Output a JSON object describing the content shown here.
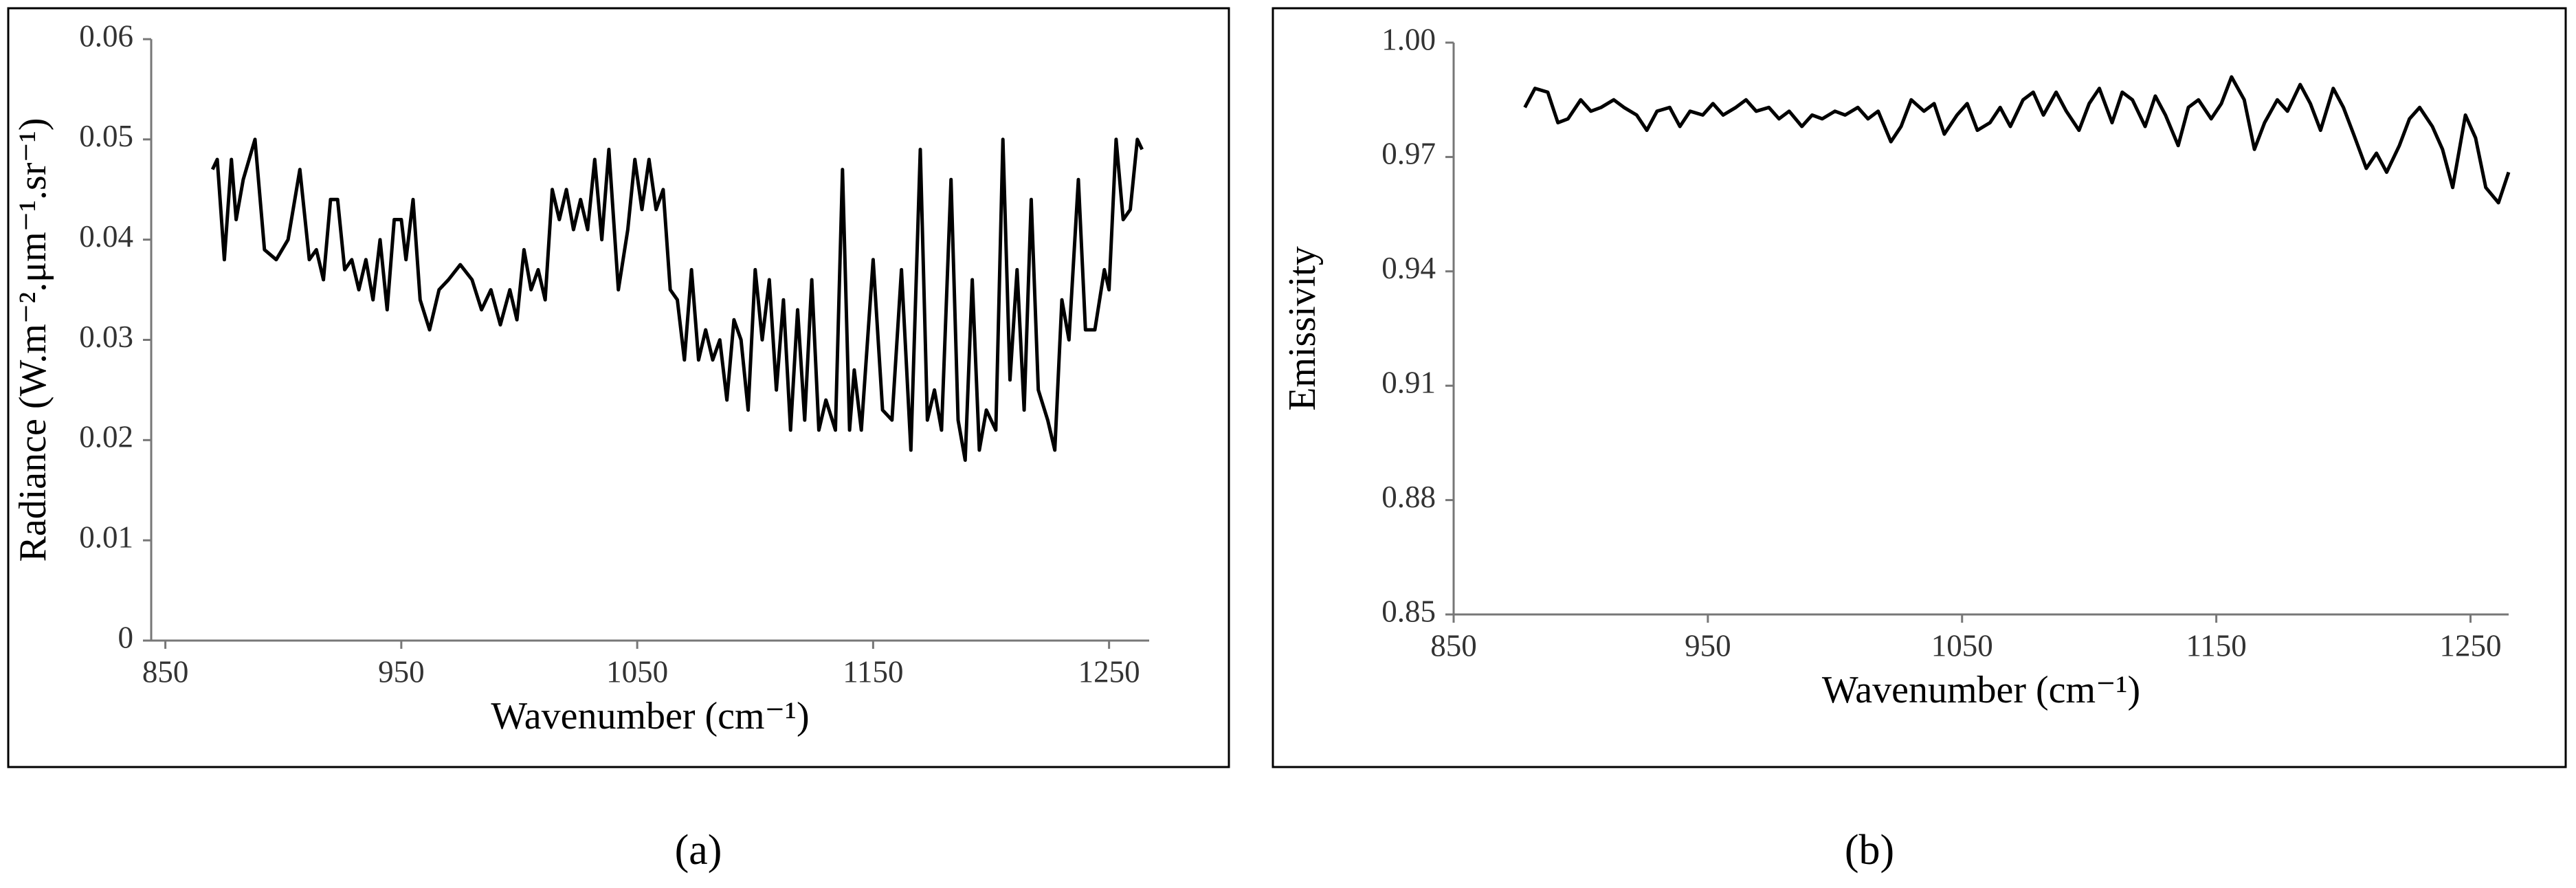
{
  "chart_data": [
    {
      "type": "line",
      "caption": "(a)",
      "x_label": "Wavenumber (cm⁻¹)",
      "y_label": "Radiance (W.m⁻².μm⁻¹.sr⁻¹)",
      "color": "#000000",
      "xlim": [
        844,
        1267
      ],
      "ylim": [
        0,
        0.06
      ],
      "xticks": [
        850,
        950,
        1050,
        1150,
        1250
      ],
      "yticks": [
        0,
        0.01,
        0.02,
        0.03,
        0.04,
        0.05,
        0.06
      ],
      "x": [
        870,
        872,
        875,
        878,
        880,
        883,
        888,
        892,
        897,
        902,
        907,
        911,
        914,
        917,
        920,
        923,
        926,
        929,
        932,
        935,
        938,
        941,
        944,
        947,
        950,
        952,
        955,
        958,
        962,
        966,
        970,
        975,
        980,
        984,
        988,
        992,
        996,
        999,
        1002,
        1005,
        1008,
        1011,
        1014,
        1017,
        1020,
        1023,
        1026,
        1029,
        1032,
        1035,
        1038,
        1042,
        1046,
        1049,
        1052,
        1055,
        1058,
        1061,
        1064,
        1067,
        1070,
        1073,
        1076,
        1079,
        1082,
        1085,
        1088,
        1091,
        1094,
        1097,
        1100,
        1103,
        1106,
        1109,
        1112,
        1115,
        1118,
        1121,
        1124,
        1127,
        1130,
        1134,
        1137,
        1140,
        1142,
        1145,
        1150,
        1154,
        1158,
        1162,
        1166,
        1170,
        1173,
        1176,
        1179,
        1183,
        1186,
        1189,
        1192,
        1195,
        1198,
        1202,
        1205,
        1208,
        1211,
        1214,
        1217,
        1220,
        1224,
        1227,
        1230,
        1233,
        1237,
        1240,
        1244,
        1248,
        1250,
        1253,
        1256,
        1259,
        1262,
        1264
      ],
      "values": [
        0.047,
        0.048,
        0.038,
        0.048,
        0.042,
        0.046,
        0.05,
        0.039,
        0.038,
        0.04,
        0.047,
        0.038,
        0.039,
        0.036,
        0.044,
        0.044,
        0.037,
        0.038,
        0.035,
        0.038,
        0.034,
        0.04,
        0.033,
        0.042,
        0.042,
        0.038,
        0.044,
        0.034,
        0.031,
        0.035,
        0.036,
        0.0375,
        0.036,
        0.033,
        0.035,
        0.0315,
        0.035,
        0.032,
        0.039,
        0.035,
        0.037,
        0.034,
        0.045,
        0.042,
        0.045,
        0.041,
        0.044,
        0.041,
        0.048,
        0.04,
        0.049,
        0.035,
        0.041,
        0.048,
        0.043,
        0.048,
        0.043,
        0.045,
        0.035,
        0.034,
        0.028,
        0.037,
        0.028,
        0.031,
        0.028,
        0.03,
        0.024,
        0.032,
        0.03,
        0.023,
        0.037,
        0.03,
        0.036,
        0.025,
        0.034,
        0.021,
        0.033,
        0.022,
        0.036,
        0.021,
        0.024,
        0.021,
        0.047,
        0.021,
        0.027,
        0.021,
        0.038,
        0.023,
        0.022,
        0.037,
        0.019,
        0.049,
        0.022,
        0.025,
        0.021,
        0.046,
        0.022,
        0.018,
        0.036,
        0.019,
        0.023,
        0.021,
        0.05,
        0.026,
        0.037,
        0.023,
        0.044,
        0.025,
        0.022,
        0.019,
        0.034,
        0.03,
        0.046,
        0.031,
        0.031,
        0.037,
        0.035,
        0.05,
        0.042,
        0.043,
        0.05,
        0.049
      ]
    },
    {
      "type": "line",
      "caption": "(b)",
      "x_label": "Wavenumber (cm⁻¹)",
      "y_label": "Emissivity",
      "color": "#000000",
      "xlim": [
        850,
        1265
      ],
      "ylim": [
        0.85,
        1.0
      ],
      "xticks": [
        850,
        950,
        1050,
        1150,
        1250
      ],
      "yticks": [
        0.85,
        0.88,
        0.91,
        0.94,
        0.97,
        {
          "value": 1.0,
          "label": "1.00"
        }
      ],
      "x": [
        878,
        882,
        887,
        891,
        895,
        900,
        904,
        908,
        913,
        917,
        922,
        926,
        930,
        935,
        939,
        943,
        948,
        952,
        956,
        961,
        965,
        969,
        974,
        978,
        982,
        987,
        991,
        995,
        1000,
        1004,
        1009,
        1013,
        1017,
        1022,
        1026,
        1030,
        1035,
        1039,
        1043,
        1048,
        1052,
        1056,
        1061,
        1065,
        1069,
        1074,
        1078,
        1082,
        1087,
        1091,
        1096,
        1100,
        1104,
        1109,
        1113,
        1117,
        1122,
        1126,
        1130,
        1135,
        1139,
        1143,
        1148,
        1152,
        1156,
        1161,
        1165,
        1169,
        1174,
        1178,
        1183,
        1187,
        1191,
        1196,
        1200,
        1204,
        1209,
        1213,
        1217,
        1222,
        1226,
        1230,
        1235,
        1239,
        1243,
        1248,
        1252,
        1256,
        1261,
        1265
      ],
      "values": [
        0.983,
        0.988,
        0.987,
        0.979,
        0.98,
        0.985,
        0.982,
        0.983,
        0.985,
        0.983,
        0.981,
        0.977,
        0.982,
        0.983,
        0.978,
        0.982,
        0.981,
        0.984,
        0.981,
        0.983,
        0.985,
        0.982,
        0.983,
        0.98,
        0.982,
        0.978,
        0.981,
        0.98,
        0.982,
        0.981,
        0.983,
        0.98,
        0.982,
        0.974,
        0.978,
        0.985,
        0.982,
        0.984,
        0.976,
        0.981,
        0.984,
        0.977,
        0.979,
        0.983,
        0.978,
        0.985,
        0.987,
        0.981,
        0.987,
        0.982,
        0.977,
        0.984,
        0.988,
        0.979,
        0.987,
        0.985,
        0.978,
        0.986,
        0.981,
        0.973,
        0.983,
        0.985,
        0.98,
        0.984,
        0.991,
        0.985,
        0.972,
        0.979,
        0.985,
        0.982,
        0.989,
        0.984,
        0.977,
        0.988,
        0.983,
        0.976,
        0.967,
        0.971,
        0.966,
        0.973,
        0.98,
        0.983,
        0.978,
        0.972,
        0.962,
        0.981,
        0.975,
        0.962,
        0.958,
        0.966
      ]
    }
  ]
}
